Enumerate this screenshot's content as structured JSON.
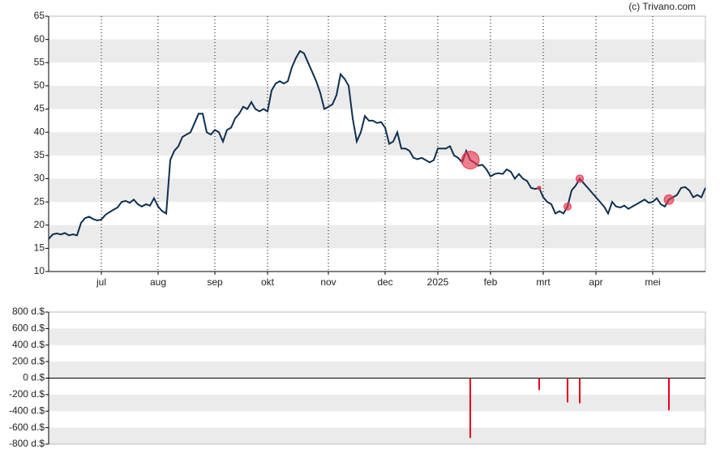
{
  "source": "(c) Trivano.com",
  "chart_data": [
    {
      "type": "line",
      "categories": [
        null,
        null,
        null,
        null,
        null,
        null,
        null,
        null,
        null,
        null,
        null,
        null,
        null,
        "jul",
        null,
        null,
        null,
        null,
        null,
        null,
        null,
        null,
        null,
        null,
        null,
        null,
        null,
        "aug",
        null,
        null,
        null,
        null,
        null,
        null,
        null,
        null,
        null,
        null,
        null,
        null,
        null,
        "sep",
        null,
        null,
        null,
        null,
        null,
        null,
        null,
        null,
        null,
        null,
        null,
        null,
        "okt",
        null,
        null,
        null,
        null,
        null,
        null,
        null,
        null,
        null,
        null,
        null,
        null,
        null,
        null,
        "nov",
        null,
        null,
        null,
        null,
        null,
        null,
        null,
        null,
        null,
        null,
        null,
        null,
        null,
        "dec",
        null,
        null,
        null,
        null,
        null,
        null,
        null,
        null,
        null,
        null,
        null,
        null,
        "2025",
        null,
        null,
        null,
        null,
        null,
        null,
        null,
        null,
        null,
        null,
        null,
        null,
        "feb",
        null,
        null,
        null,
        null,
        null,
        null,
        null,
        null,
        null,
        null,
        null,
        null,
        "mrt",
        null,
        null,
        null,
        null,
        null,
        null,
        null,
        null,
        null,
        null,
        null,
        null,
        "apr",
        null,
        null,
        null,
        null,
        null,
        null,
        null,
        null,
        null,
        null,
        null,
        null,
        null,
        "mei",
        null,
        null,
        null,
        null,
        null,
        null,
        null,
        null,
        null,
        null,
        null,
        null,
        null
      ],
      "series": [
        {
          "color": "#0d3050",
          "values": [
            17,
            18,
            18.2,
            18,
            18.3,
            17.8,
            18,
            17.8,
            20.5,
            21.5,
            21.8,
            21.3,
            21,
            21.2,
            22.2,
            22.8,
            23.3,
            23.8,
            25,
            25.2,
            24.8,
            25.5,
            24.5,
            24,
            24.5,
            24.2,
            25.8,
            24,
            23,
            22.5,
            34,
            36,
            37,
            39,
            39.5,
            40,
            42,
            44,
            44,
            40,
            39.5,
            40.5,
            40,
            38,
            40.5,
            41,
            43,
            44,
            45.5,
            45,
            46.5,
            45,
            44.5,
            45,
            44.5,
            49,
            50.5,
            51,
            50.5,
            51,
            54,
            56,
            57.5,
            57,
            55,
            53,
            51,
            48.5,
            45,
            45.5,
            46,
            48,
            52.5,
            51.5,
            50,
            43,
            38,
            40,
            43.5,
            42.5,
            42.5,
            42,
            42.2,
            41,
            37.5,
            38,
            40,
            36.5,
            36.5,
            36,
            34.5,
            34.2,
            34.5,
            34,
            33.5,
            34,
            36.5,
            36.5,
            36.5,
            37,
            35,
            34.5,
            33.5,
            36,
            34,
            33.5,
            32.8,
            33,
            32,
            30.5,
            31,
            31.2,
            31,
            32,
            31.5,
            30,
            31,
            30,
            29.5,
            28,
            27.8,
            28,
            26,
            25,
            24.5,
            22.5,
            23,
            22.5,
            24,
            27.5,
            28.5,
            30,
            29,
            28,
            27,
            26,
            25,
            24,
            22.5,
            25,
            24,
            23.8,
            24.2,
            23.5,
            24,
            24.5,
            25,
            25.5,
            24.8,
            25,
            25.8,
            24.5,
            24,
            25.5,
            26,
            26.5,
            28,
            28.2,
            27.5,
            26,
            26.5,
            26,
            28
          ]
        }
      ],
      "ylim": [
        10,
        65
      ],
      "yticks": [
        10,
        15,
        20,
        25,
        30,
        35,
        40,
        45,
        50,
        55,
        60,
        65
      ],
      "bubble_color": "#e8384f",
      "grid": true
    },
    {
      "type": "bar",
      "color": "#e8001c",
      "values": [
        null,
        null,
        null,
        null,
        null,
        null,
        null,
        null,
        null,
        null,
        null,
        null,
        null,
        null,
        null,
        null,
        null,
        null,
        null,
        null,
        null,
        null,
        null,
        null,
        null,
        null,
        null,
        null,
        null,
        null,
        null,
        null,
        null,
        null,
        null,
        null,
        null,
        null,
        null,
        null,
        null,
        null,
        null,
        null,
        null,
        null,
        null,
        null,
        null,
        null,
        null,
        null,
        null,
        null,
        null,
        null,
        null,
        null,
        null,
        null,
        null,
        null,
        null,
        null,
        null,
        null,
        null,
        null,
        null,
        null,
        null,
        null,
        null,
        null,
        null,
        null,
        null,
        null,
        null,
        null,
        null,
        null,
        null,
        null,
        null,
        null,
        null,
        null,
        null,
        null,
        null,
        null,
        null,
        null,
        null,
        null,
        null,
        null,
        null,
        null,
        null,
        null,
        null,
        null,
        -725,
        null,
        null,
        null,
        null,
        null,
        null,
        null,
        null,
        null,
        null,
        null,
        null,
        null,
        null,
        null,
        null,
        -145,
        null,
        null,
        null,
        null,
        null,
        null,
        -295,
        null,
        null,
        -305,
        null,
        null,
        null,
        null,
        null,
        null,
        null,
        null,
        null,
        null,
        null,
        null,
        null,
        null,
        null,
        null,
        null,
        null,
        null,
        null,
        null,
        -390,
        null,
        null,
        null,
        null,
        null,
        null,
        null,
        null,
        null
      ],
      "ylim": [
        -800,
        800
      ],
      "yticks": [
        {
          "value": -800,
          "label": "-800 d.$"
        },
        {
          "value": -600,
          "label": "-600 d.$"
        },
        {
          "value": -400,
          "label": "-400 d.$"
        },
        {
          "value": -200,
          "label": "-200 d.$"
        },
        {
          "value": 0,
          "label": "0 d.$"
        },
        {
          "value": 200,
          "label": "200 d.$"
        },
        {
          "value": 400,
          "label": "400 d.$"
        },
        {
          "value": 600,
          "label": "600 d.$"
        },
        {
          "value": 800,
          "label": "800 d.$"
        }
      ],
      "grid": true
    }
  ]
}
